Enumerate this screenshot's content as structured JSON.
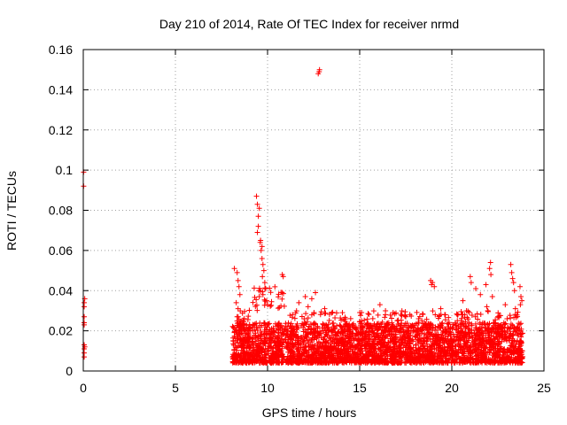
{
  "chart_data": {
    "type": "scatter",
    "title": "Day 210 of 2014, Rate Of TEC Index for receiver nrmd",
    "xlabel": "GPS time / hours",
    "ylabel": "ROTI / TECUs",
    "xlim": [
      0,
      25
    ],
    "ylim": [
      0,
      0.16
    ],
    "x_ticks": [
      0,
      5,
      10,
      15,
      20,
      25
    ],
    "x_tick_labels": [
      "0",
      "5",
      "10",
      "15",
      "20",
      "25"
    ],
    "y_ticks": [
      0,
      0.02,
      0.04,
      0.06,
      0.08,
      0.1,
      0.12,
      0.14,
      0.16
    ],
    "y_tick_labels": [
      "0",
      "0.02",
      "0.04",
      "0.06",
      "0.08",
      "0.1",
      "0.12",
      "0.14",
      "0.16"
    ],
    "grid": true,
    "marker": "+",
    "color": "#ff0000",
    "series": [
      {
        "name": "ROTI",
        "points": [
          [
            0.02,
            0.092
          ],
          [
            0.02,
            0.099
          ],
          [
            0.05,
            0.034
          ],
          [
            0.05,
            0.032
          ],
          [
            0.05,
            0.027
          ],
          [
            0.05,
            0.024
          ],
          [
            0.05,
            0.023
          ],
          [
            0.05,
            0.013
          ],
          [
            0.05,
            0.011
          ],
          [
            0.05,
            0.009
          ],
          [
            0.05,
            0.007
          ],
          [
            0.08,
            0.036
          ],
          [
            0.08,
            0.012
          ],
          [
            12.75,
            0.148
          ],
          [
            12.82,
            0.15
          ],
          [
            12.8,
            0.149
          ],
          [
            9.4,
            0.087
          ],
          [
            9.45,
            0.083
          ],
          [
            9.5,
            0.077
          ],
          [
            9.55,
            0.081
          ],
          [
            9.5,
            0.072
          ],
          [
            9.45,
            0.069
          ],
          [
            9.6,
            0.064
          ],
          [
            9.65,
            0.06
          ],
          [
            9.7,
            0.056
          ],
          [
            9.75,
            0.053
          ],
          [
            9.8,
            0.05
          ],
          [
            9.72,
            0.047
          ],
          [
            9.85,
            0.044
          ],
          [
            9.9,
            0.041
          ],
          [
            9.62,
            0.065
          ],
          [
            9.7,
            0.062
          ],
          [
            9.55,
            0.037
          ],
          [
            9.75,
            0.038
          ],
          [
            9.95,
            0.035
          ],
          [
            10.0,
            0.033
          ],
          [
            8.2,
            0.051
          ],
          [
            8.35,
            0.049
          ],
          [
            8.4,
            0.045
          ],
          [
            8.45,
            0.042
          ],
          [
            8.5,
            0.038
          ],
          [
            8.3,
            0.034
          ],
          [
            8.4,
            0.031
          ],
          [
            8.35,
            0.027
          ],
          [
            10.8,
            0.048
          ],
          [
            10.85,
            0.047
          ],
          [
            11.7,
            0.034
          ],
          [
            12.05,
            0.037
          ],
          [
            12.6,
            0.039
          ],
          [
            12.4,
            0.036
          ],
          [
            12.2,
            0.032
          ],
          [
            13.1,
            0.031
          ],
          [
            16.1,
            0.033
          ],
          [
            16.4,
            0.03
          ],
          [
            17.5,
            0.027
          ],
          [
            18.2,
            0.026
          ],
          [
            18.85,
            0.045
          ],
          [
            18.9,
            0.043
          ],
          [
            18.95,
            0.044
          ],
          [
            19.05,
            0.042
          ],
          [
            19.1,
            0.028
          ],
          [
            19.4,
            0.031
          ],
          [
            19.8,
            0.022
          ],
          [
            20.3,
            0.025
          ],
          [
            20.6,
            0.035
          ],
          [
            20.8,
            0.03
          ],
          [
            21.0,
            0.047
          ],
          [
            21.05,
            0.044
          ],
          [
            21.3,
            0.041
          ],
          [
            21.55,
            0.038
          ],
          [
            21.85,
            0.043
          ],
          [
            21.9,
            0.032
          ],
          [
            21.95,
            0.03
          ],
          [
            22.05,
            0.051
          ],
          [
            22.1,
            0.054
          ],
          [
            22.12,
            0.048
          ],
          [
            22.2,
            0.037
          ],
          [
            22.5,
            0.027
          ],
          [
            22.9,
            0.033
          ],
          [
            23.0,
            0.026
          ],
          [
            23.2,
            0.053
          ],
          [
            23.25,
            0.049
          ],
          [
            23.3,
            0.046
          ],
          [
            23.35,
            0.044
          ],
          [
            23.4,
            0.04
          ],
          [
            23.45,
            0.031
          ],
          [
            23.7,
            0.042
          ],
          [
            23.75,
            0.037
          ],
          [
            23.8,
            0.035
          ],
          [
            23.72,
            0.033
          ],
          [
            23.6,
            0.021
          ]
        ]
      }
    ]
  }
}
